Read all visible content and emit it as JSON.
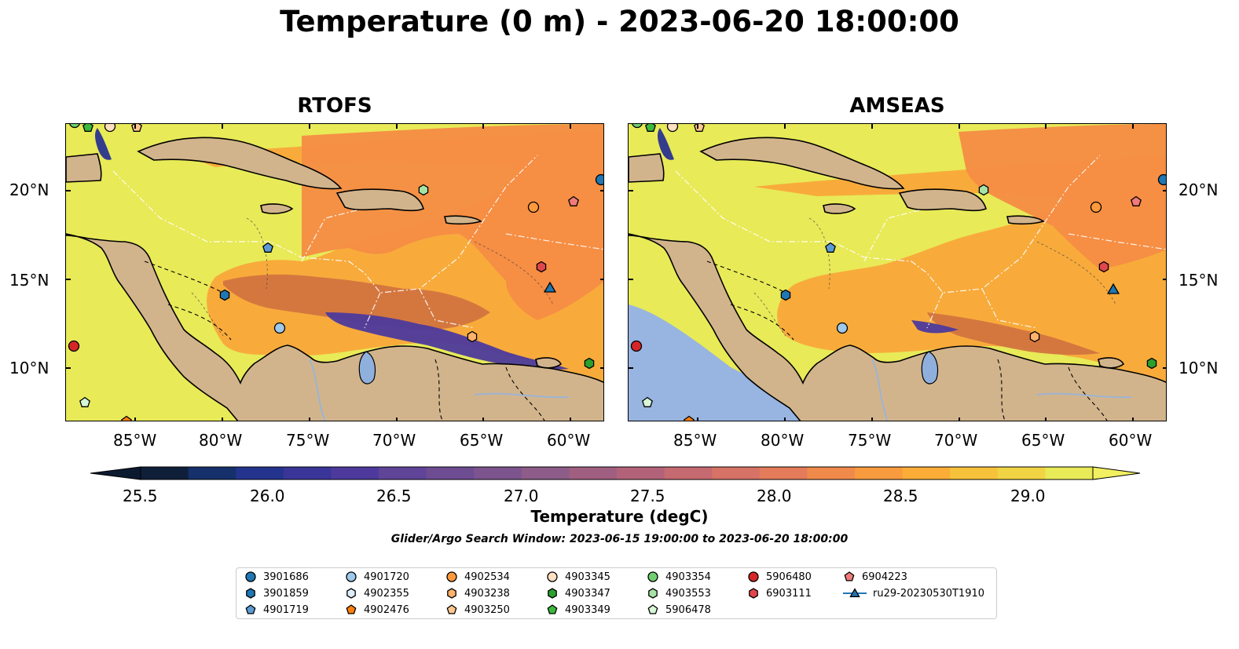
{
  "title": "Temperature (0 m) - 2023-06-20 18:00:00",
  "panels": [
    {
      "title": "RTOFS"
    },
    {
      "title": "AMSEAS"
    }
  ],
  "lon_ticks": [
    "85°W",
    "80°W",
    "75°W",
    "70°W",
    "65°W",
    "60°W"
  ],
  "lat_ticks": [
    "20°N",
    "15°N",
    "10°N"
  ],
  "colorbar": {
    "label": "Temperature (degC)",
    "ticks": [
      "25.5",
      "26.0",
      "26.5",
      "27.0",
      "27.5",
      "28.0",
      "28.5",
      "29.0"
    ],
    "colors": [
      "#0f1f3a",
      "#15306a",
      "#24338e",
      "#3a3599",
      "#4d3a9c",
      "#5f4498",
      "#6e4c92",
      "#7d548e",
      "#8d5c88",
      "#a05f80",
      "#b2637a",
      "#c56a70",
      "#d67266",
      "#e47b5a",
      "#f08a4b",
      "#f89a3e",
      "#fbad37",
      "#f7c23b",
      "#f0d443",
      "#e8ea58"
    ]
  },
  "subtitle": "Glider/Argo Search Window: 2023-06-15 19:00:00 to 2023-06-20 18:00:00",
  "legend": [
    {
      "label": "3901686",
      "marker": "circle",
      "color": "#1f77b4"
    },
    {
      "label": "3901859",
      "marker": "hexagon",
      "color": "#1f77b4"
    },
    {
      "label": "4901719",
      "marker": "pentagon",
      "color": "#5b9bd5"
    },
    {
      "label": "4901720",
      "marker": "circle",
      "color": "#9ec9ea"
    },
    {
      "label": "4902355",
      "marker": "hexagon",
      "color": "#dcecf8"
    },
    {
      "label": "4902476",
      "marker": "pentagon",
      "color": "#ff7f0e"
    },
    {
      "label": "4902534",
      "marker": "circle",
      "color": "#ff9a3c"
    },
    {
      "label": "4903238",
      "marker": "hexagon",
      "color": "#ffb26b"
    },
    {
      "label": "4903250",
      "marker": "pentagon",
      "color": "#ffc78f"
    },
    {
      "label": "4903345",
      "marker": "circle",
      "color": "#ffe0c0"
    },
    {
      "label": "4903347",
      "marker": "hexagon",
      "color": "#2ca02c"
    },
    {
      "label": "4903349",
      "marker": "pentagon",
      "color": "#3cb93c"
    },
    {
      "label": "4903354",
      "marker": "circle",
      "color": "#6fcf6f"
    },
    {
      "label": "4903553",
      "marker": "hexagon",
      "color": "#a6e3a6"
    },
    {
      "label": "5906478",
      "marker": "pentagon",
      "color": "#d7f7d7"
    },
    {
      "label": "5906480",
      "marker": "circle",
      "color": "#d62728"
    },
    {
      "label": "6903111",
      "marker": "hexagon",
      "color": "#e0474c"
    },
    {
      "label": "6904223",
      "marker": "pentagon",
      "color": "#f07b7b"
    },
    {
      "label": "ru29-20230530T1910",
      "marker": "triangle",
      "color": "#1f77b4"
    }
  ],
  "colors": {
    "land": "#d2b48c",
    "warm_water": "#e8ea58",
    "mid_water": "#f9a83a",
    "orange_water": "#f68c45",
    "cool_water": "#4d3a9c",
    "nodata": "#98b4e0",
    "river": "#9db4d2"
  }
}
